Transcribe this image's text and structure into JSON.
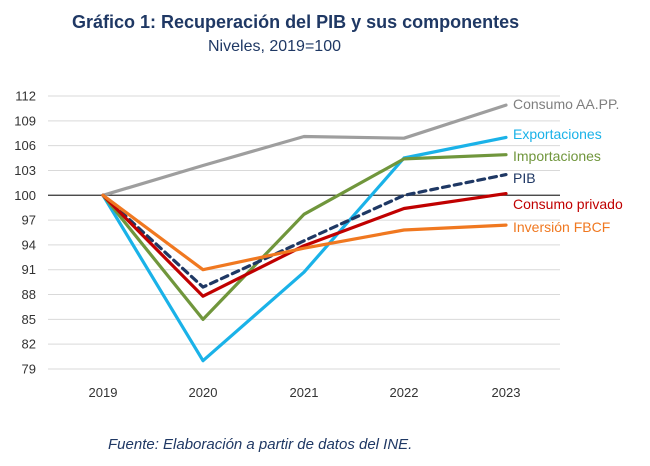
{
  "title": "Gráfico 1: Recuperación del PIB y sus componentes",
  "subtitle": "Niveles, 2019=100",
  "source": "Fuente: Elaboración a partir de datos del INE.",
  "chart_data": {
    "type": "line",
    "title": "Gráfico 1: Recuperación del PIB y sus componentes",
    "subtitle": "Niveles, 2019=100",
    "x": [
      "2019",
      "2020",
      "2021",
      "2022",
      "2023"
    ],
    "ylim": [
      79,
      112
    ],
    "yticks": [
      79,
      82,
      85,
      88,
      91,
      94,
      97,
      100,
      103,
      106,
      109,
      112
    ],
    "grid": true,
    "legend": "right",
    "series": [
      {
        "name": "Consumo AA.PP.",
        "color": "#9e9e9e",
        "dash": false,
        "values": [
          100,
          103.6,
          107.1,
          106.9,
          110.9
        ]
      },
      {
        "name": "Exportaciones",
        "color": "#1ab2e8",
        "dash": false,
        "values": [
          100,
          80.0,
          90.7,
          104.5,
          107.0
        ]
      },
      {
        "name": "Importaciones",
        "color": "#70963c",
        "dash": false,
        "values": [
          100,
          85.0,
          97.7,
          104.4,
          104.9
        ]
      },
      {
        "name": "PIB",
        "color": "#1f3864",
        "dash": true,
        "values": [
          100,
          88.9,
          94.5,
          100.0,
          102.5
        ]
      },
      {
        "name": "Consumo privado",
        "color": "#c00000",
        "dash": false,
        "values": [
          100,
          87.8,
          93.9,
          98.4,
          100.2
        ]
      },
      {
        "name": "Inversión FBCF",
        "color": "#f07820",
        "dash": false,
        "values": [
          100,
          91.0,
          93.6,
          95.8,
          96.4
        ]
      }
    ]
  }
}
